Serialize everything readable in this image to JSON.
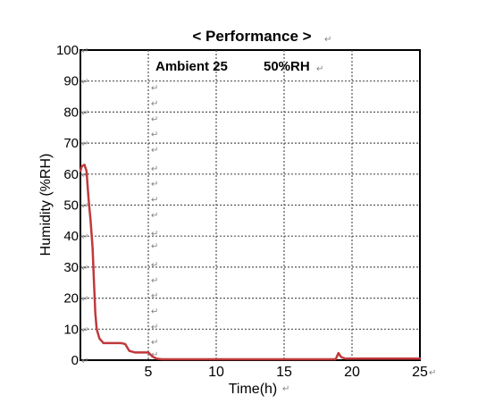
{
  "chart_data": {
    "type": "line",
    "title": "< Performance >",
    "annotation": {
      "label": "Ambient 25",
      "value": "50%RH"
    },
    "xlabel": "Time(h)",
    "ylabel": "Humidity (%RH)",
    "xlim": [
      0,
      25
    ],
    "ylim": [
      0,
      100
    ],
    "xticks": [
      5,
      10,
      15,
      20,
      25
    ],
    "yticks": [
      0,
      10,
      20,
      30,
      40,
      50,
      60,
      70,
      80,
      90,
      100
    ],
    "grid": true,
    "series": [
      {
        "color": "#c0393b",
        "points": [
          [
            0,
            61
          ],
          [
            0.1,
            62.5
          ],
          [
            0.3,
            63
          ],
          [
            0.45,
            61
          ],
          [
            0.6,
            52
          ],
          [
            0.75,
            45
          ],
          [
            0.9,
            36
          ],
          [
            1.0,
            25
          ],
          [
            1.1,
            15
          ],
          [
            1.2,
            10
          ],
          [
            1.4,
            7
          ],
          [
            1.7,
            5.5
          ],
          [
            2.0,
            5.5
          ],
          [
            3.0,
            5.5
          ],
          [
            3.3,
            5.2
          ],
          [
            3.6,
            3
          ],
          [
            4.0,
            2.5
          ],
          [
            5.0,
            2.5
          ],
          [
            5.3,
            1.2
          ],
          [
            5.6,
            0.5
          ],
          [
            6,
            0.3
          ],
          [
            10,
            0.3
          ],
          [
            15,
            0.3
          ],
          [
            18.6,
            0.3
          ],
          [
            18.8,
            0.3
          ],
          [
            19.0,
            2.3
          ],
          [
            19.2,
            1.0
          ],
          [
            19.5,
            0.5
          ],
          [
            20,
            0.5
          ],
          [
            25,
            0.5
          ]
        ]
      }
    ]
  },
  "marks": {
    "return_symbol": "↵"
  }
}
